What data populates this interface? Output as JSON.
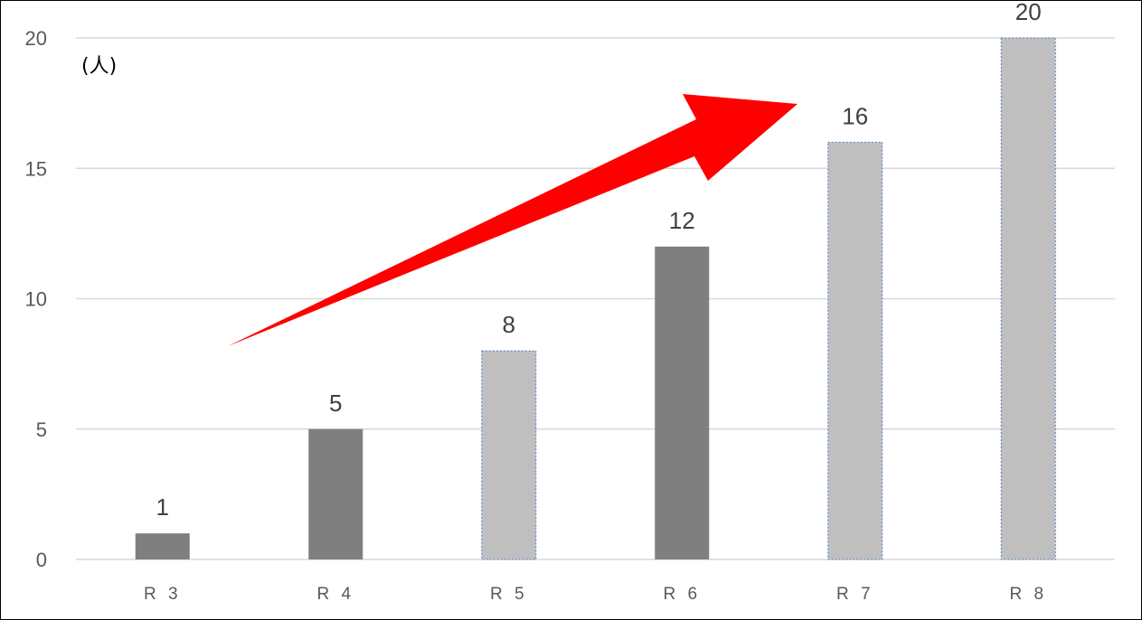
{
  "chart_data": {
    "type": "bar",
    "categories": [
      "R 3",
      "R 4",
      "R 5",
      "R 6",
      "R 7",
      "R 8"
    ],
    "values": [
      1,
      5,
      8,
      12,
      16,
      20
    ],
    "bar_style": [
      "actual",
      "actual",
      "projected",
      "actual",
      "projected",
      "projected"
    ],
    "unit_label": "(人)",
    "ylim": [
      0,
      20
    ],
    "yticks": [
      0,
      5,
      10,
      15,
      20
    ],
    "grid": true,
    "legend": false,
    "annotation": "red arrow indicating upward trend",
    "colors": {
      "actual": "#7f7f7f",
      "projected": "#bfbfbf",
      "projected_border": "#4f81bd",
      "grid": "#d9d9d9",
      "arrow": "#ff0000"
    }
  }
}
